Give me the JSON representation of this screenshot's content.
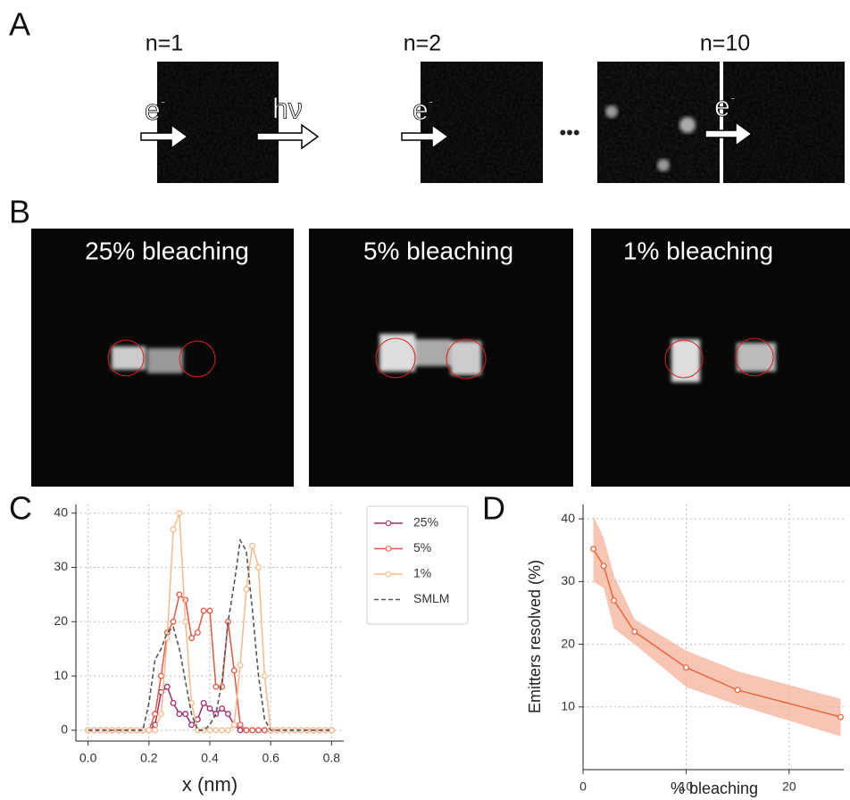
{
  "panel_labels": [
    "A",
    "B",
    "C",
    "D"
  ],
  "panel_a": {
    "titles": [
      "n=1",
      "n=2",
      "n=10"
    ],
    "electron": "e",
    "electron_charge": "-",
    "photon": "hν",
    "ellipsis": "•••"
  },
  "panel_b": {
    "titles": [
      "25% bleaching",
      "5% bleaching",
      "1% bleaching"
    ]
  },
  "chart_data": [
    {
      "type": "line",
      "xlabel": "x (nm)",
      "x": [
        0,
        0.02,
        0.04,
        0.06,
        0.08,
        0.1,
        0.12,
        0.14,
        0.16,
        0.18,
        0.2,
        0.22,
        0.24,
        0.26,
        0.28,
        0.3,
        0.32,
        0.34,
        0.36,
        0.38,
        0.4,
        0.42,
        0.44,
        0.46,
        0.48,
        0.5,
        0.52,
        0.54,
        0.56,
        0.58,
        0.6,
        0.62,
        0.64,
        0.66,
        0.68,
        0.7,
        0.72,
        0.74,
        0.76,
        0.78,
        0.8
      ],
      "series": [
        {
          "name": "25%",
          "color": "#a22a6e",
          "markers": true,
          "values": [
            0,
            0,
            0,
            0,
            0,
            0,
            0,
            0,
            0,
            0,
            0,
            1,
            7,
            8,
            5,
            3,
            3,
            1,
            2,
            5,
            4,
            3,
            4,
            3,
            1,
            0,
            0,
            0,
            0,
            0,
            0,
            0,
            0,
            0,
            0,
            0,
            0,
            0,
            0,
            0,
            0
          ]
        },
        {
          "name": "5%",
          "color": "#e8573f",
          "markers": true,
          "values": [
            0,
            0,
            0,
            0,
            0,
            0,
            0,
            0,
            0,
            0,
            0,
            3,
            10,
            18,
            20,
            25,
            24,
            17,
            18,
            22,
            22,
            8,
            8,
            20,
            11,
            1,
            0,
            0,
            0,
            0,
            0,
            0,
            0,
            0,
            0,
            0,
            0,
            0,
            0,
            0,
            0
          ]
        },
        {
          "name": "1%",
          "color": "#f7b98b",
          "markers": true,
          "values": [
            0,
            0,
            0,
            0,
            0,
            0,
            0,
            0,
            0,
            0,
            0,
            0,
            3,
            17,
            37,
            40,
            20,
            5,
            0,
            0,
            0,
            0,
            0,
            0,
            1,
            12,
            26,
            34,
            30,
            10,
            0,
            0,
            0,
            0,
            0,
            0,
            0,
            0,
            0,
            0,
            0
          ]
        },
        {
          "name": "SMLM",
          "color": "#555555",
          "markers": false,
          "dashed": true,
          "values": [
            0,
            0,
            0,
            0,
            0,
            0,
            0,
            0,
            0,
            0,
            5,
            13,
            15,
            18,
            19,
            15,
            9,
            3,
            0,
            0,
            1,
            3,
            9,
            20,
            27,
            35,
            33,
            22,
            10,
            2,
            0,
            0,
            0,
            0,
            0,
            0,
            0,
            0,
            0,
            0,
            0
          ]
        }
      ],
      "xlim": [
        -0.04,
        0.84
      ],
      "ylim": [
        -2,
        41.6
      ],
      "xticks": [
        {
          "value": 0,
          "label": "0.0"
        },
        0.2,
        0.4,
        0.6,
        0.8
      ],
      "yticks": [
        0,
        10,
        20,
        30,
        40
      ],
      "grid": true,
      "legend": "outside-right"
    },
    {
      "type": "line",
      "xlabel": "% bleaching",
      "ylabel": "Emitters resolved (%)",
      "x": [
        1,
        2,
        3,
        5,
        10,
        15,
        25
      ],
      "series": [
        {
          "color": "#e8673e",
          "band_color": "#f4b29a",
          "markers": true,
          "values": [
            35.2,
            32.5,
            27,
            22,
            16.3,
            12.7,
            8.4
          ],
          "upper": [
            40.5,
            37,
            31,
            24,
            19,
            15.7,
            11.3
          ],
          "lower": [
            30,
            29,
            22.5,
            20,
            13.2,
            10.3,
            5.3
          ]
        }
      ],
      "xlim": [
        0,
        25.3
      ],
      "ylim": [
        0,
        42.3
      ],
      "xticks": [
        0,
        10,
        20
      ],
      "yticks": [
        10,
        20,
        30,
        40
      ],
      "grid": true
    }
  ]
}
